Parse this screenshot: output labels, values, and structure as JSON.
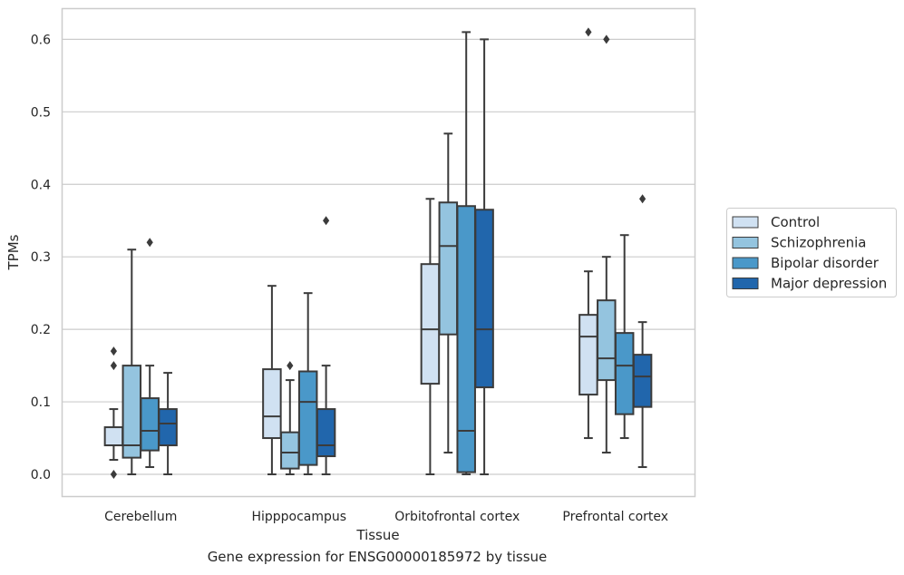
{
  "caption": "Gene expression for ENSG00000185972 by tissue",
  "chart_data": {
    "type": "box",
    "xlabel": "Tissue",
    "ylabel": "TPMs",
    "ylim": [
      -0.03,
      0.643
    ],
    "yticks": [
      0.0,
      0.1,
      0.2,
      0.3,
      0.4,
      0.5,
      0.6
    ],
    "ytick_labels": [
      "0.0",
      "0.1",
      "0.2",
      "0.3",
      "0.4",
      "0.5",
      "0.6"
    ],
    "grid": "horizontal",
    "legend_position": "right",
    "categories": [
      "Cerebellum",
      "Hipppocampus",
      "Orbitofrontal cortex",
      "Prefrontal cortex"
    ],
    "series": [
      {
        "name": "Control",
        "color": "#d0e1f2",
        "boxes": [
          {
            "whislo": 0.02,
            "q1": 0.04,
            "med": 0.04,
            "q3": 0.065,
            "whishi": 0.09,
            "fliers": [
              0.0,
              0.15,
              0.17
            ]
          },
          {
            "whislo": 0.0,
            "q1": 0.05,
            "med": 0.08,
            "q3": 0.145,
            "whishi": 0.26,
            "fliers": []
          },
          {
            "whislo": 0.0,
            "q1": 0.125,
            "med": 0.2,
            "q3": 0.29,
            "whishi": 0.38,
            "fliers": []
          },
          {
            "whislo": 0.05,
            "q1": 0.11,
            "med": 0.19,
            "q3": 0.22,
            "whishi": 0.28,
            "fliers": [
              0.61
            ]
          }
        ]
      },
      {
        "name": "Schizophrenia",
        "color": "#94c4df",
        "boxes": [
          {
            "whislo": 0.0,
            "q1": 0.023,
            "med": 0.04,
            "q3": 0.15,
            "whishi": 0.31,
            "fliers": []
          },
          {
            "whislo": 0.0,
            "q1": 0.008,
            "med": 0.03,
            "q3": 0.058,
            "whishi": 0.13,
            "fliers": [
              0.15
            ]
          },
          {
            "whislo": 0.03,
            "q1": 0.193,
            "med": 0.315,
            "q3": 0.375,
            "whishi": 0.47,
            "fliers": []
          },
          {
            "whislo": 0.03,
            "q1": 0.13,
            "med": 0.16,
            "q3": 0.24,
            "whishi": 0.3,
            "fliers": [
              0.6
            ]
          }
        ]
      },
      {
        "name": "Bipolar disorder",
        "color": "#4a98c9",
        "boxes": [
          {
            "whislo": 0.01,
            "q1": 0.033,
            "med": 0.06,
            "q3": 0.105,
            "whishi": 0.15,
            "fliers": [
              0.32
            ]
          },
          {
            "whislo": 0.0,
            "q1": 0.013,
            "med": 0.1,
            "q3": 0.142,
            "whishi": 0.25,
            "fliers": []
          },
          {
            "whislo": 0.0,
            "q1": 0.003,
            "med": 0.06,
            "q3": 0.37,
            "whishi": 0.61,
            "fliers": []
          },
          {
            "whislo": 0.05,
            "q1": 0.083,
            "med": 0.15,
            "q3": 0.195,
            "whishi": 0.33,
            "fliers": []
          }
        ]
      },
      {
        "name": "Major depression",
        "color": "#2166ac",
        "boxes": [
          {
            "whislo": 0.0,
            "q1": 0.04,
            "med": 0.07,
            "q3": 0.09,
            "whishi": 0.14,
            "fliers": []
          },
          {
            "whislo": 0.0,
            "q1": 0.025,
            "med": 0.04,
            "q3": 0.09,
            "whishi": 0.15,
            "fliers": [
              0.35
            ]
          },
          {
            "whislo": 0.0,
            "q1": 0.12,
            "med": 0.2,
            "q3": 0.365,
            "whishi": 0.6,
            "fliers": []
          },
          {
            "whislo": 0.01,
            "q1": 0.093,
            "med": 0.135,
            "q3": 0.165,
            "whishi": 0.21,
            "fliers": [
              0.38
            ]
          }
        ]
      }
    ],
    "colors": {
      "grid": "#cccccc",
      "frame": "#cccccc",
      "box_edge": "#3b3b3b",
      "text": "#262626"
    }
  }
}
